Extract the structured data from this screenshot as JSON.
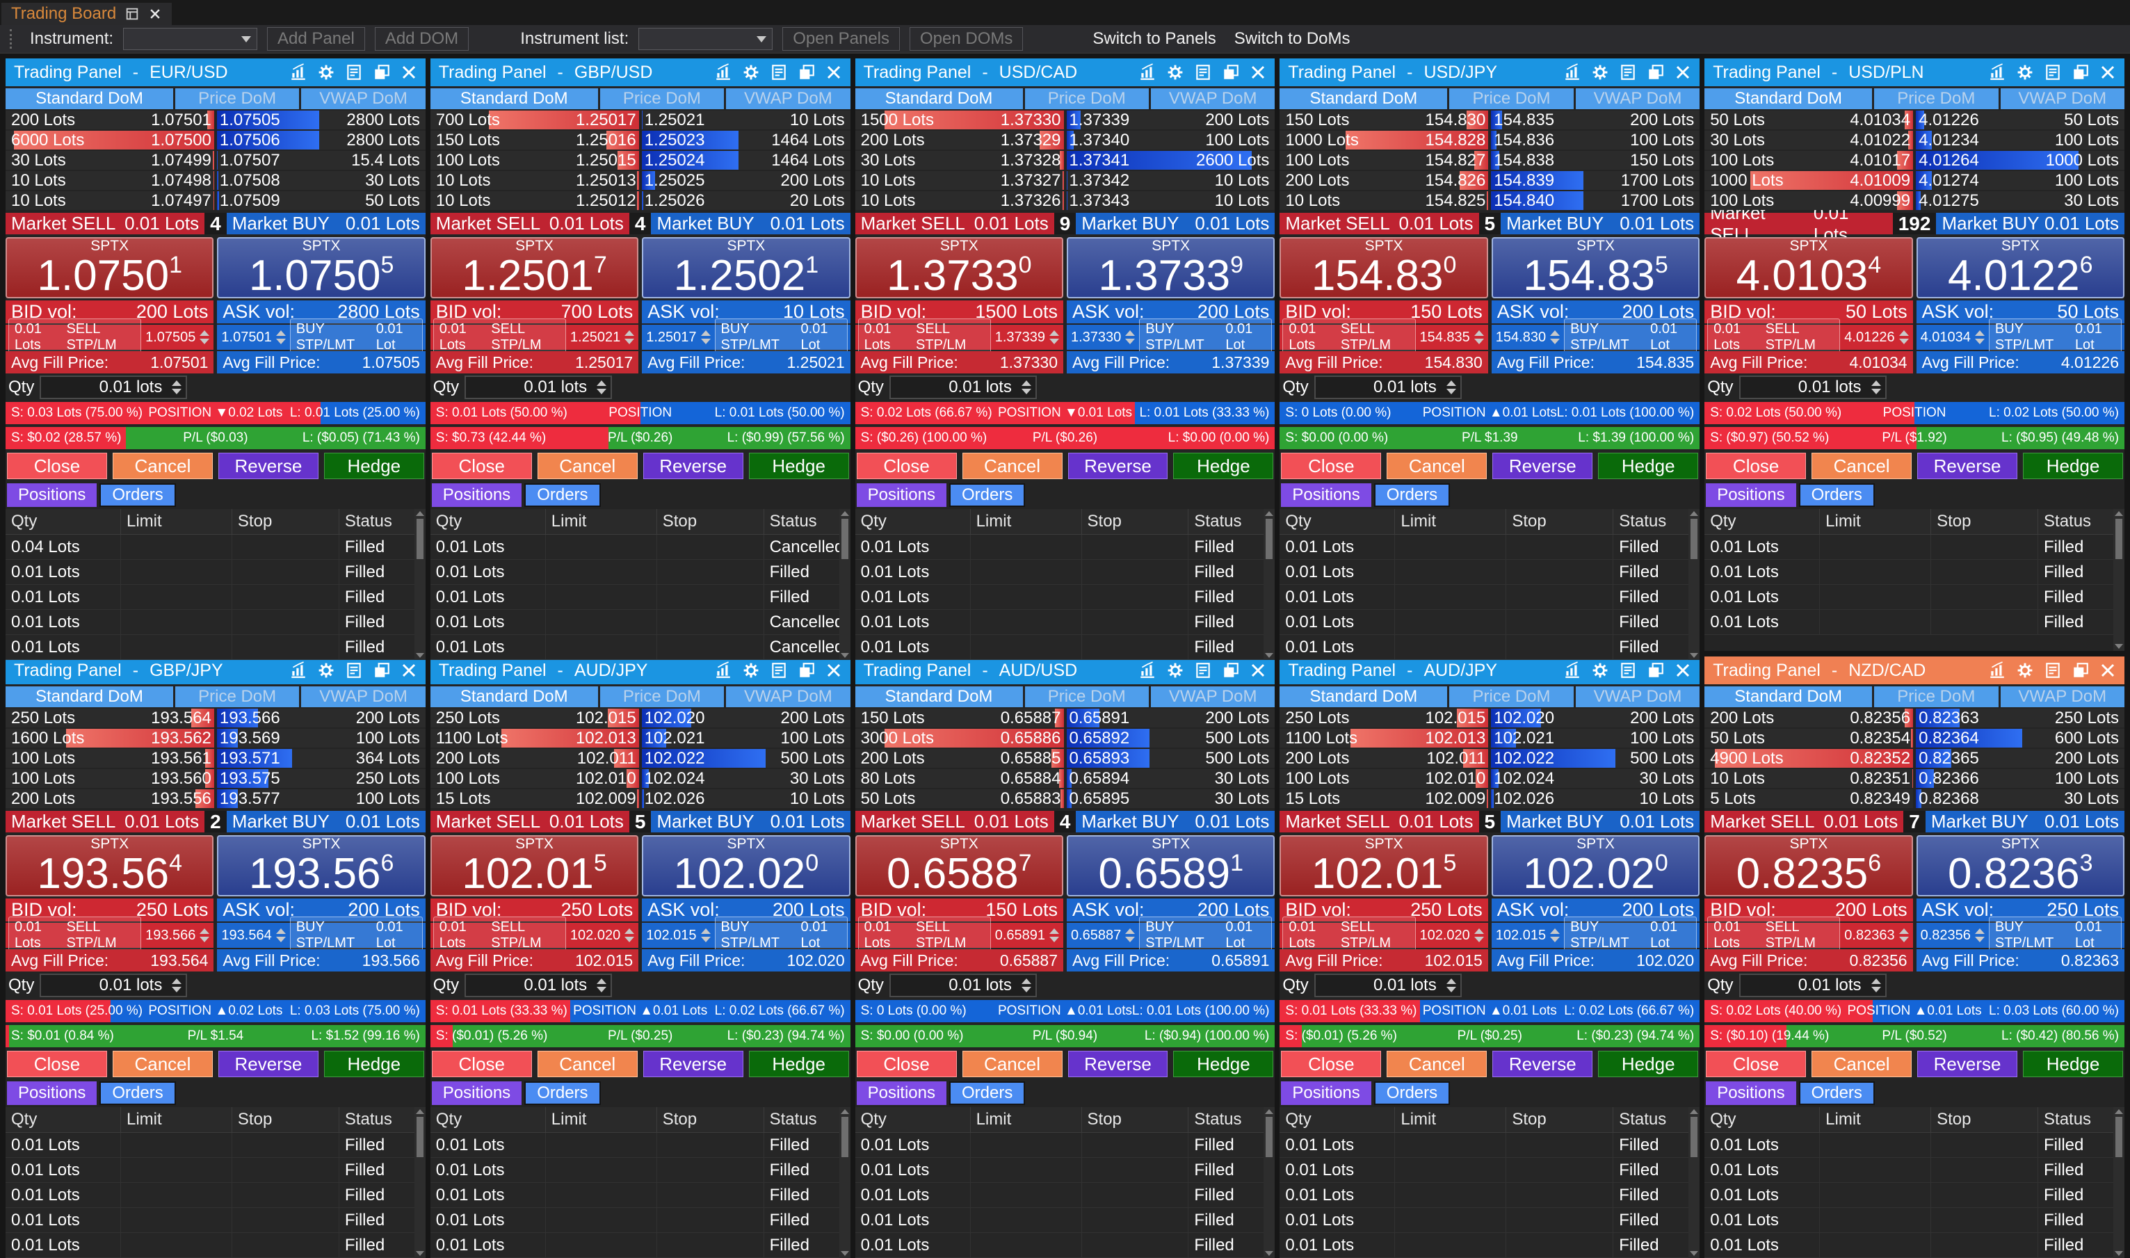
{
  "window_tab": {
    "title": "Trading Board"
  },
  "toolbar": {
    "instrument_label": "Instrument:",
    "add_panel": "Add Panel",
    "add_dom": "Add DOM",
    "instrument_list_label": "Instrument list:",
    "open_panels": "Open Panels",
    "open_doms": "Open DOMs",
    "switch_panels": "Switch to Panels",
    "switch_doms": "Switch to DoMs",
    "instrument_value": "",
    "instrument_list_value": ""
  },
  "labels": {
    "panel_title_prefix": "Trading Panel",
    "title_separator": "-",
    "dom_tabs": [
      "Standard DoM",
      "Price DoM",
      "VWAP DoM"
    ],
    "market_sell": "Market SELL",
    "market_buy": "Market BUY",
    "market_qty": "0.01 Lots",
    "sptx": "SPTX",
    "bid_vol": "BID vol:",
    "ask_vol": "ASK vol:",
    "sell_stp": "SELL STP/LM",
    "buy_stp": "BUY STP/LMT",
    "stp_qty_sell": "0.01 Lots",
    "stp_qty_buy": "0.01 Lot",
    "avg_fill": "Avg Fill Price:",
    "qty_label": "Qty",
    "qty_value": "0.01 lots",
    "close": "Close",
    "cancel": "Cancel",
    "reverse": "Reverse",
    "hedge": "Hedge",
    "positions_tab": "Positions",
    "orders_tab": "Orders",
    "table_headers": [
      "Qty",
      "Limit",
      "Stop",
      "Status"
    ]
  },
  "colors": {
    "titlebar_blue": "#1b95e2",
    "titlebar_orange": "#f08053",
    "sell_red": "#ce2832",
    "buy_blue": "#1b67cf",
    "position_red": "#ee2c3e",
    "position_blue": "#1465d8",
    "pl_green": "#2fa334"
  },
  "panels": [
    {
      "symbol": "EUR/USD",
      "accent": "blue",
      "count": "4",
      "dom": [
        [
          "200 Lots",
          "1.07501",
          3.2,
          "1.07505",
          "2800 Lots",
          49
        ],
        [
          "6000 Lots",
          "1.07500",
          96,
          "1.07506",
          "2800 Lots",
          49
        ],
        [
          "30 Lots",
          "1.07499",
          0.6,
          "1.07507",
          "15.4 Lots",
          0.3
        ],
        [
          "10 Lots",
          "1.07498",
          0.3,
          "1.07508",
          "30 Lots",
          0.6
        ],
        [
          "10 Lots",
          "1.07497",
          0.3,
          "1.07509",
          "50 Lots",
          0.9
        ]
      ],
      "sell_main": "1.0750",
      "sell_sup": "1",
      "buy_main": "1.0750",
      "buy_sup": "5",
      "bid_vol": "200 Lots",
      "ask_vol": "2800 Lots",
      "sell_stp_price": "1.07505",
      "buy_stp_price": "1.07501",
      "avg_sell": "1.07501",
      "avg_buy": "1.07505",
      "pos": {
        "s": "S:  0.03 Lots (75.00 %)",
        "c": "POSITION ▼0.02 Lots",
        "l": "L:  0.01 Lots (25.00 %)",
        "pct": 75
      },
      "pl": {
        "s": "S:  $0.02 (28.57 %)",
        "c": "P/L ($0.03)",
        "l": "L:  ($0.05) (71.43 %)",
        "pct": 28.57
      },
      "orders": [
        [
          "0.04 Lots",
          "",
          "",
          "Filled"
        ],
        [
          "0.01 Lots",
          "",
          "",
          "Filled"
        ],
        [
          "0.01 Lots",
          "",
          "",
          "Filled"
        ],
        [
          "0.01 Lots",
          "",
          "",
          "Filled"
        ],
        [
          "0.01 Lots",
          "",
          "",
          "Filled"
        ]
      ]
    },
    {
      "symbol": "GBP/USD",
      "accent": "blue",
      "count": "4",
      "dom": [
        [
          "700 Lots",
          "1.25017",
          72,
          "1.25021",
          "10 Lots",
          0.4
        ],
        [
          "150 Lots",
          "1.25016",
          15.5,
          "1.25023",
          "1464 Lots",
          46.4
        ],
        [
          "100 Lots",
          "1.25015",
          10.3,
          "1.25024",
          "1464 Lots",
          46.4
        ],
        [
          "10 Lots",
          "1.25013",
          1,
          "1.25025",
          "200 Lots",
          6.3
        ],
        [
          "10 Lots",
          "1.25012",
          1,
          "1.25026",
          "20 Lots",
          0.7
        ]
      ],
      "sell_main": "1.2501",
      "sell_sup": "7",
      "buy_main": "1.2502",
      "buy_sup": "1",
      "bid_vol": "700 Lots",
      "ask_vol": "10 Lots",
      "sell_stp_price": "1.25021",
      "buy_stp_price": "1.25017",
      "avg_sell": "1.25017",
      "avg_buy": "1.25021",
      "pos": {
        "s": "S:  0.01 Lots (50.00 %)",
        "c": "POSITION",
        "l": "L:  0.01 Lots (50.00 %)",
        "pct": 50
      },
      "pl": {
        "s": "S:  $0.73 (42.44 %)",
        "c": "P/L ($0.26)",
        "l": "L:  ($0.99) (57.56 %)",
        "pct": 42.44
      },
      "orders": [
        [
          "0.01 Lots",
          "",
          "",
          "Cancelled"
        ],
        [
          "0.01 Lots",
          "",
          "",
          "Filled"
        ],
        [
          "0.01 Lots",
          "",
          "",
          "Filled"
        ],
        [
          "0.01 Lots",
          "",
          "",
          "Cancelled"
        ],
        [
          "0.01 Lots",
          "",
          "",
          "Cancelled"
        ]
      ]
    },
    {
      "symbol": "USD/CAD",
      "accent": "blue",
      "count": "9",
      "dom": [
        [
          "1500 Lots",
          "1.37330",
          86,
          "1.37339",
          "200 Lots",
          6.8
        ],
        [
          "200 Lots",
          "1.37329",
          11.4,
          "1.37340",
          "100 Lots",
          3.4
        ],
        [
          "30 Lots",
          "1.37328",
          1.7,
          "1.37341",
          "2600 Lots",
          89
        ],
        [
          "10 Lots",
          "1.37327",
          0.6,
          "1.37342",
          "10 Lots",
          0.4
        ],
        [
          "10 Lots",
          "1.37326",
          0.6,
          "1.37343",
          "10 Lots",
          0.4
        ]
      ],
      "sell_main": "1.3733",
      "sell_sup": "0",
      "buy_main": "1.3733",
      "buy_sup": "9",
      "bid_vol": "1500 Lots",
      "ask_vol": "200 Lots",
      "sell_stp_price": "1.37339",
      "buy_stp_price": "1.37330",
      "avg_sell": "1.37330",
      "avg_buy": "1.37339",
      "pos": {
        "s": "S:  0.02 Lots (66.67 %)",
        "c": "POSITION ▼0.01 Lots",
        "l": "L:  0.01 Lots (33.33 %)",
        "pct": 66.67
      },
      "pl": {
        "s": "S:  ($0.26) (100.00 %)",
        "c": "P/L ($0.26)",
        "l": "L:  $0.00 (0.00 %)",
        "pct": 100
      },
      "orders": [
        [
          "0.01 Lots",
          "",
          "",
          "Filled"
        ],
        [
          "0.01 Lots",
          "",
          "",
          "Filled"
        ],
        [
          "0.01 Lots",
          "",
          "",
          "Filled"
        ],
        [
          "0.01 Lots",
          "",
          "",
          "Filled"
        ],
        [
          "0.01 Lots",
          "",
          "",
          "Filled"
        ]
      ]
    },
    {
      "symbol": "USD/JPY",
      "accent": "blue",
      "count": "5",
      "dom": [
        [
          "150 Lots",
          "154.830",
          10.3,
          "154.835",
          "200 Lots",
          5.2
        ],
        [
          "1000 Lots",
          "154.828",
          68.5,
          "154.836",
          "100 Lots",
          2.6
        ],
        [
          "100 Lots",
          "154.827",
          6.8,
          "154.838",
          "150 Lots",
          3.9
        ],
        [
          "200 Lots",
          "154.826",
          13.7,
          "154.839",
          "1700 Lots",
          44.2
        ],
        [
          "10 Lots",
          "154.825",
          0.7,
          "154.840",
          "1700 Lots",
          44.2
        ]
      ],
      "sell_main": "154.83",
      "sell_sup": "0",
      "buy_main": "154.83",
      "buy_sup": "5",
      "bid_vol": "150 Lots",
      "ask_vol": "200 Lots",
      "sell_stp_price": "154.835",
      "buy_stp_price": "154.830",
      "avg_sell": "154.830",
      "avg_buy": "154.835",
      "pos": {
        "s": "S:  0 Lots (0.00 %)",
        "c": "POSITION ▲0.01 Lots",
        "l": "L:  0.01 Lots (100.00 %)",
        "pct": 0
      },
      "pl": {
        "s": "S:  $0.00 (0.00 %)",
        "c": "P/L $1.39",
        "l": "L:  $1.39 (100.00 %)",
        "pct": 0
      },
      "orders": [
        [
          "0.01 Lots",
          "",
          "",
          "Filled"
        ],
        [
          "0.01 Lots",
          "",
          "",
          "Filled"
        ],
        [
          "0.01 Lots",
          "",
          "",
          "Filled"
        ],
        [
          "0.01 Lots",
          "",
          "",
          "Filled"
        ],
        [
          "0.01 Lots",
          "",
          "",
          "Filled"
        ]
      ]
    },
    {
      "symbol": "USD/PLN",
      "accent": "blue",
      "count": "192",
      "dom": [
        [
          "50 Lots",
          "4.01034",
          3.9,
          "4.01226",
          "50 Lots",
          3.9
        ],
        [
          "30 Lots",
          "4.01022",
          2.3,
          "4.01234",
          "100 Lots",
          7.8
        ],
        [
          "100 Lots",
          "4.01017",
          7.8,
          "4.01264",
          "1000 Lots",
          78
        ],
        [
          "1000 Lots",
          "4.01009",
          78,
          "4.01274",
          "100 Lots",
          7.8
        ],
        [
          "100 Lots",
          "4.00999",
          7.8,
          "4.01275",
          "30 Lots",
          2.3
        ]
      ],
      "sell_main": "4.0103",
      "sell_sup": "4",
      "buy_main": "4.0122",
      "buy_sup": "6",
      "bid_vol": "50 Lots",
      "ask_vol": "50 Lots",
      "sell_stp_price": "4.01226",
      "buy_stp_price": "4.01034",
      "avg_sell": "4.01034",
      "avg_buy": "4.01226",
      "pos": {
        "s": "S:  0.02 Lots (50.00 %)",
        "c": "POSITION",
        "l": "L:  0.02 Lots (50.00 %)",
        "pct": 50
      },
      "pl": {
        "s": "S:  ($0.97) (50.52 %)",
        "c": "P/L ($1.92)",
        "l": "L:  ($0.95) (49.48 %)",
        "pct": 50.52
      },
      "orders": [
        [
          "0.01 Lots",
          "",
          "",
          "Filled"
        ],
        [
          "0.01 Lots",
          "",
          "",
          "Filled"
        ],
        [
          "0.01 Lots",
          "",
          "",
          "Filled"
        ],
        [
          "0.01 Lots",
          "",
          "",
          "Filled"
        ]
      ]
    },
    {
      "symbol": "GBP/JPY",
      "accent": "blue",
      "count": "2",
      "dom": [
        [
          "250 Lots",
          "193.564",
          11,
          "193.566",
          "200 Lots",
          19.7
        ],
        [
          "1600 Lots",
          "193.562",
          71,
          "193.569",
          "100 Lots",
          9.9
        ],
        [
          "100 Lots",
          "193.561",
          4.4,
          "193.571",
          "364 Lots",
          36
        ],
        [
          "100 Lots",
          "193.560",
          4.4,
          "193.575",
          "250 Lots",
          24.7
        ],
        [
          "200 Lots",
          "193.556",
          8.9,
          "193.577",
          "100 Lots",
          9.9
        ]
      ],
      "sell_main": "193.56",
      "sell_sup": "4",
      "buy_main": "193.56",
      "buy_sup": "6",
      "bid_vol": "250 Lots",
      "ask_vol": "200 Lots",
      "sell_stp_price": "193.566",
      "buy_stp_price": "193.564",
      "avg_sell": "193.564",
      "avg_buy": "193.566",
      "pos": {
        "s": "S:  0.01 Lots (25.00 %)",
        "c": "POSITION ▲0.02 Lots",
        "l": "L:  0.03 Lots (75.00 %)",
        "pct": 25
      },
      "pl": {
        "s": "S:  $0.01 (0.84 %)",
        "c": "P/L $1.54",
        "l": "L:  $1.52 (99.16 %)",
        "pct": 0.84
      },
      "orders": [
        [
          "0.01 Lots",
          "",
          "",
          "Filled"
        ],
        [
          "0.01 Lots",
          "",
          "",
          "Filled"
        ],
        [
          "0.01 Lots",
          "",
          "",
          "Filled"
        ],
        [
          "0.01 Lots",
          "",
          "",
          "Filled"
        ],
        [
          "0.01 Lots",
          "",
          "",
          "Filled"
        ]
      ]
    },
    {
      "symbol": "AUD/JPY",
      "accent": "blue",
      "count": "5",
      "dom": [
        [
          "250 Lots",
          "102.015",
          15,
          "102.020",
          "200 Lots",
          23.8
        ],
        [
          "1100 Lots",
          "102.013",
          66,
          "102.021",
          "100 Lots",
          11.9
        ],
        [
          "200 Lots",
          "102.011",
          12,
          "102.022",
          "500 Lots",
          59.5
        ],
        [
          "100 Lots",
          "102.010",
          6,
          "102.024",
          "30 Lots",
          3.6
        ],
        [
          "15 Lots",
          "102.009",
          0.9,
          "102.026",
          "10 Lots",
          1.2
        ]
      ],
      "sell_main": "102.01",
      "sell_sup": "5",
      "buy_main": "102.02",
      "buy_sup": "0",
      "bid_vol": "250 Lots",
      "ask_vol": "200 Lots",
      "sell_stp_price": "102.020",
      "buy_stp_price": "102.015",
      "avg_sell": "102.015",
      "avg_buy": "102.020",
      "pos": {
        "s": "S:  0.01 Lots (33.33 %)",
        "c": "POSITION ▲0.01 Lots",
        "l": "L:  0.02 Lots (66.67 %)",
        "pct": 33.33
      },
      "pl": {
        "s": "S:  ($0.01) (5.26 %)",
        "c": "P/L ($0.25)",
        "l": "L:  ($0.23) (94.74 %)",
        "pct": 5.26
      },
      "orders": [
        [
          "0.01 Lots",
          "",
          "",
          "Filled"
        ],
        [
          "0.01 Lots",
          "",
          "",
          "Filled"
        ],
        [
          "0.01 Lots",
          "",
          "",
          "Filled"
        ],
        [
          "0.01 Lots",
          "",
          "",
          "Filled"
        ],
        [
          "0.01 Lots",
          "",
          "",
          "Filled"
        ]
      ]
    },
    {
      "symbol": "AUD/USD",
      "accent": "blue",
      "count": "4",
      "dom": [
        [
          "150 Lots",
          "0.65887",
          4.3,
          "0.65891",
          "200 Lots",
          15.9
        ],
        [
          "3000 Lots",
          "0.65886",
          86,
          "0.65892",
          "500 Lots",
          39.7
        ],
        [
          "200 Lots",
          "0.65885",
          5.7,
          "0.65893",
          "500 Lots",
          39.7
        ],
        [
          "80 Lots",
          "0.65884",
          2.3,
          "0.65894",
          "30 Lots",
          2.4
        ],
        [
          "50 Lots",
          "0.65883",
          1.4,
          "0.65895",
          "30 Lots",
          2.4
        ]
      ],
      "sell_main": "0.6588",
      "sell_sup": "7",
      "buy_main": "0.6589",
      "buy_sup": "1",
      "bid_vol": "150 Lots",
      "ask_vol": "200 Lots",
      "sell_stp_price": "0.65891",
      "buy_stp_price": "0.65887",
      "avg_sell": "0.65887",
      "avg_buy": "0.65891",
      "pos": {
        "s": "S:  0 Lots (0.00 %)",
        "c": "POSITION ▲0.01 Lots",
        "l": "L:  0.01 Lots (100.00 %)",
        "pct": 0
      },
      "pl": {
        "s": "S:  $0.00 (0.00 %)",
        "c": "P/L ($0.94)",
        "l": "L:  ($0.94) (100.00 %)",
        "pct": 0
      },
      "orders": [
        [
          "0.01 Lots",
          "",
          "",
          "Filled"
        ],
        [
          "0.01 Lots",
          "",
          "",
          "Filled"
        ],
        [
          "0.01 Lots",
          "",
          "",
          "Filled"
        ],
        [
          "0.01 Lots",
          "",
          "",
          "Filled"
        ],
        [
          "0.01 Lots",
          "",
          "",
          "Filled"
        ]
      ]
    },
    {
      "symbol": "AUD/JPY",
      "accent": "blue",
      "count": "5",
      "dom": [
        [
          "250 Lots",
          "102.015",
          15,
          "102.020",
          "200 Lots",
          23.8
        ],
        [
          "1100 Lots",
          "102.013",
          66,
          "102.021",
          "100 Lots",
          11.9
        ],
        [
          "200 Lots",
          "102.011",
          12,
          "102.022",
          "500 Lots",
          59.5
        ],
        [
          "100 Lots",
          "102.010",
          6,
          "102.024",
          "30 Lots",
          3.6
        ],
        [
          "15 Lots",
          "102.009",
          0.9,
          "102.026",
          "10 Lots",
          1.2
        ]
      ],
      "sell_main": "102.01",
      "sell_sup": "5",
      "buy_main": "102.02",
      "buy_sup": "0",
      "bid_vol": "250 Lots",
      "ask_vol": "200 Lots",
      "sell_stp_price": "102.020",
      "buy_stp_price": "102.015",
      "avg_sell": "102.015",
      "avg_buy": "102.020",
      "pos": {
        "s": "S:  0.01 Lots (33.33 %)",
        "c": "POSITION ▲0.01 Lots",
        "l": "L:  0.02 Lots (66.67 %)",
        "pct": 33.33
      },
      "pl": {
        "s": "S:  ($0.01) (5.26 %)",
        "c": "P/L ($0.25)",
        "l": "L:  ($0.23) (94.74 %)",
        "pct": 5.26
      },
      "orders": [
        [
          "0.01 Lots",
          "",
          "",
          "Filled"
        ],
        [
          "0.01 Lots",
          "",
          "",
          "Filled"
        ],
        [
          "0.01 Lots",
          "",
          "",
          "Filled"
        ],
        [
          "0.01 Lots",
          "",
          "",
          "Filled"
        ],
        [
          "0.01 Lots",
          "",
          "",
          "Filled"
        ]
      ]
    },
    {
      "symbol": "NZD/CAD",
      "accent": "orange",
      "count": "7",
      "dom": [
        [
          "200 Lots",
          "0.82356",
          3.9,
          "0.82363",
          "250 Lots",
          21
        ],
        [
          "50 Lots",
          "0.82354",
          1,
          "0.82364",
          "600 Lots",
          51
        ],
        [
          "4900 Lots",
          "0.82352",
          95,
          "0.82365",
          "200 Lots",
          17
        ],
        [
          "10 Lots",
          "0.82351",
          0.4,
          "0.82366",
          "100 Lots",
          8.5
        ],
        [
          "5 Lots",
          "0.82349",
          0.2,
          "0.82368",
          "30 Lots",
          2.5
        ]
      ],
      "sell_main": "0.8235",
      "sell_sup": "6",
      "buy_main": "0.8236",
      "buy_sup": "3",
      "bid_vol": "200 Lots",
      "ask_vol": "250 Lots",
      "sell_stp_price": "0.82363",
      "buy_stp_price": "0.82356",
      "avg_sell": "0.82356",
      "avg_buy": "0.82363",
      "pos": {
        "s": "S:  0.02 Lots (40.00 %)",
        "c": "POSITION ▲0.01 Lots",
        "l": "L:  0.03 Lots (60.00 %)",
        "pct": 40
      },
      "pl": {
        "s": "S:  ($0.10) (19.44 %)",
        "c": "P/L ($0.52)",
        "l": "L:  ($0.42) (80.56 %)",
        "pct": 19.44
      },
      "orders": [
        [
          "0.01 Lots",
          "",
          "",
          "Filled"
        ],
        [
          "0.01 Lots",
          "",
          "",
          "Filled"
        ],
        [
          "0.01 Lots",
          "",
          "",
          "Filled"
        ],
        [
          "0.01 Lots",
          "",
          "",
          "Filled"
        ],
        [
          "0.01 Lots",
          "",
          "",
          "Filled"
        ]
      ]
    }
  ]
}
